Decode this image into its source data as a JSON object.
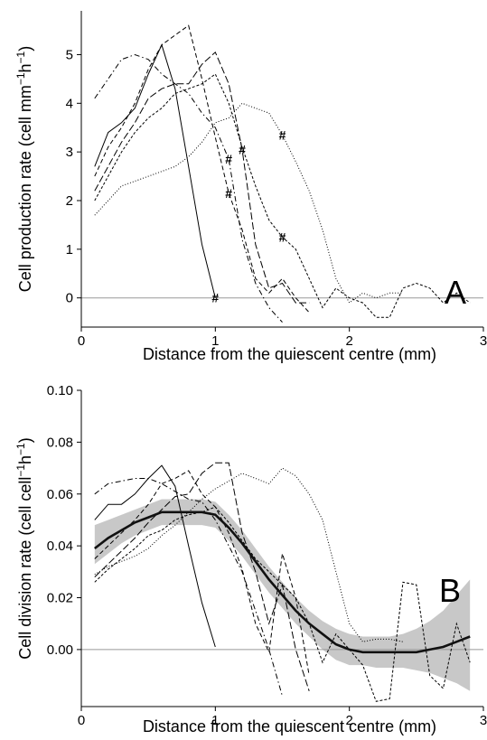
{
  "chart_data": [
    {
      "panel_label": "A",
      "type": "line",
      "xlabel": "Distance from the quiescent centre (mm)",
      "ylabel_main": "Cell production rate (cell mm",
      "ylabel_sup1": "−1",
      "ylabel_mid": "h",
      "ylabel_sup2": "−1",
      "ylabel_end": ")",
      "xlim": [
        0,
        3
      ],
      "ylim": [
        -0.6,
        5.9
      ],
      "xticks": [
        "0",
        "1",
        "2",
        "3"
      ],
      "yticks": [
        "0",
        "1",
        "2",
        "3",
        "4",
        "5"
      ],
      "reference_line_y": 0,
      "marker_symbol": "#",
      "markers": [
        {
          "x": 1.0,
          "y": 0.0
        },
        {
          "x": 1.1,
          "y": 2.85
        },
        {
          "x": 1.1,
          "y": 2.15
        },
        {
          "x": 1.2,
          "y": 3.05
        },
        {
          "x": 1.5,
          "y": 3.35
        },
        {
          "x": 1.5,
          "y": 1.25
        }
      ],
      "series": [
        {
          "style": "solid",
          "x": [
            0.1,
            0.2,
            0.3,
            0.4,
            0.5,
            0.6,
            0.7,
            0.8,
            0.9,
            1.0
          ],
          "y": [
            2.7,
            3.4,
            3.6,
            3.9,
            4.6,
            5.2,
            4.3,
            2.7,
            1.1,
            0.0
          ]
        },
        {
          "style": "dashdot",
          "x": [
            0.1,
            0.2,
            0.3,
            0.4,
            0.5,
            0.6,
            0.7,
            0.8,
            0.9,
            1.0,
            1.1,
            1.2,
            1.3,
            1.4,
            1.5
          ],
          "y": [
            4.1,
            4.5,
            4.9,
            5.0,
            4.9,
            4.6,
            4.4,
            4.2,
            3.8,
            3.5,
            2.85,
            1.2,
            0.3,
            -0.2,
            -0.5
          ]
        },
        {
          "style": "dashed",
          "x": [
            0.1,
            0.2,
            0.3,
            0.4,
            0.5,
            0.6,
            0.7,
            0.8,
            0.9,
            1.0,
            1.1,
            1.2,
            1.3,
            1.4,
            1.5,
            1.6,
            1.7
          ],
          "y": [
            2.5,
            3.1,
            3.5,
            4.0,
            4.7,
            5.2,
            5.4,
            5.6,
            4.5,
            3.3,
            2.15,
            1.4,
            0.4,
            0.1,
            0.4,
            0.0,
            -0.3
          ]
        },
        {
          "style": "longdash",
          "x": [
            0.1,
            0.2,
            0.3,
            0.4,
            0.5,
            0.6,
            0.7,
            0.8,
            0.9,
            1.0,
            1.1,
            1.2,
            1.3,
            1.4,
            1.5,
            1.6,
            1.7
          ],
          "y": [
            2.2,
            2.7,
            3.2,
            3.6,
            4.1,
            4.3,
            4.4,
            4.4,
            4.8,
            5.05,
            4.4,
            3.05,
            1.1,
            0.2,
            0.3,
            -0.1,
            -0.1
          ]
        },
        {
          "style": "shortdash",
          "x": [
            0.1,
            0.2,
            0.3,
            0.4,
            0.5,
            0.6,
            0.7,
            0.8,
            0.9,
            1.0,
            1.1,
            1.2,
            1.3,
            1.4,
            1.5,
            1.6,
            1.7,
            1.8,
            1.9,
            2.0,
            2.1,
            2.2,
            2.3,
            2.4,
            2.5,
            2.6,
            2.7,
            2.8,
            2.9
          ],
          "y": [
            2.0,
            2.5,
            3.0,
            3.4,
            3.7,
            3.9,
            4.2,
            4.3,
            4.4,
            4.6,
            4.0,
            3.1,
            2.3,
            1.6,
            1.25,
            1.0,
            0.4,
            -0.2,
            0.2,
            0.0,
            -0.1,
            -0.4,
            -0.4,
            0.2,
            0.3,
            0.2,
            -0.1,
            0.1,
            -0.1
          ]
        },
        {
          "style": "dotted",
          "x": [
            0.1,
            0.2,
            0.3,
            0.4,
            0.5,
            0.6,
            0.7,
            0.8,
            0.9,
            1.0,
            1.1,
            1.2,
            1.3,
            1.4,
            1.5,
            1.6,
            1.7,
            1.8,
            1.9,
            2.0,
            2.1,
            2.2,
            2.3,
            2.4
          ],
          "y": [
            1.7,
            2.0,
            2.3,
            2.4,
            2.5,
            2.6,
            2.7,
            2.9,
            3.2,
            3.6,
            3.7,
            4.0,
            3.9,
            3.8,
            3.35,
            2.8,
            2.2,
            1.4,
            0.4,
            -0.1,
            0.1,
            0.0,
            0.1,
            0.1
          ]
        }
      ]
    },
    {
      "panel_label": "B",
      "type": "line",
      "xlabel": "Distance from the quiescent centre (mm)",
      "ylabel_main": "Cell division rate (cell cell",
      "ylabel_sup1": "−1",
      "ylabel_mid": "h",
      "ylabel_sup2": "−1",
      "ylabel_end": ")",
      "xlim": [
        0,
        3
      ],
      "ylim": [
        -0.022,
        0.1
      ],
      "xticks": [
        "0",
        "1",
        "2",
        "3"
      ],
      "yticks": [
        "0.00",
        "0.02",
        "0.04",
        "0.06",
        "0.08",
        "0.10"
      ],
      "reference_line_y": 0,
      "smooth": {
        "x": [
          0.1,
          0.2,
          0.3,
          0.4,
          0.5,
          0.6,
          0.7,
          0.8,
          0.9,
          1.0,
          1.1,
          1.2,
          1.3,
          1.4,
          1.5,
          1.6,
          1.7,
          1.8,
          1.9,
          2.0,
          2.1,
          2.2,
          2.3,
          2.4,
          2.5,
          2.6,
          2.7,
          2.8,
          2.9
        ],
        "y": [
          0.039,
          0.043,
          0.046,
          0.049,
          0.051,
          0.053,
          0.053,
          0.053,
          0.053,
          0.052,
          0.047,
          0.041,
          0.034,
          0.027,
          0.021,
          0.015,
          0.01,
          0.006,
          0.002,
          0.0,
          -0.001,
          -0.001,
          -0.001,
          -0.001,
          -0.001,
          0.0,
          0.001,
          0.003,
          0.005
        ],
        "lower": [
          0.033,
          0.037,
          0.041,
          0.044,
          0.046,
          0.048,
          0.048,
          0.048,
          0.048,
          0.047,
          0.042,
          0.036,
          0.029,
          0.022,
          0.016,
          0.01,
          0.005,
          0.0,
          -0.004,
          -0.006,
          -0.006,
          -0.007,
          -0.007,
          -0.007,
          -0.008,
          -0.009,
          -0.011,
          -0.013,
          -0.016
        ],
        "upper": [
          0.048,
          0.05,
          0.052,
          0.054,
          0.056,
          0.058,
          0.058,
          0.058,
          0.058,
          0.057,
          0.052,
          0.046,
          0.039,
          0.032,
          0.026,
          0.02,
          0.015,
          0.011,
          0.008,
          0.006,
          0.005,
          0.005,
          0.005,
          0.006,
          0.008,
          0.011,
          0.015,
          0.021,
          0.027
        ]
      },
      "series": [
        {
          "style": "solid",
          "x": [
            0.1,
            0.2,
            0.3,
            0.4,
            0.5,
            0.6,
            0.7,
            0.8,
            0.9,
            1.0
          ],
          "y": [
            0.05,
            0.056,
            0.056,
            0.06,
            0.066,
            0.071,
            0.063,
            0.04,
            0.018,
            0.001
          ]
        },
        {
          "style": "dashdot",
          "x": [
            0.1,
            0.2,
            0.3,
            0.4,
            0.5,
            0.6,
            0.7,
            0.8,
            0.9,
            1.0,
            1.1,
            1.2,
            1.3,
            1.4,
            1.5
          ],
          "y": [
            0.06,
            0.064,
            0.065,
            0.066,
            0.066,
            0.064,
            0.061,
            0.058,
            0.057,
            0.05,
            0.04,
            0.03,
            0.015,
            0.0,
            -0.018
          ]
        },
        {
          "style": "dashed",
          "x": [
            0.1,
            0.2,
            0.3,
            0.4,
            0.5,
            0.6,
            0.7,
            0.8,
            0.9,
            1.0,
            1.1,
            1.2,
            1.3,
            1.4,
            1.5,
            1.6,
            1.7
          ],
          "y": [
            0.035,
            0.04,
            0.045,
            0.05,
            0.056,
            0.064,
            0.066,
            0.069,
            0.06,
            0.055,
            0.045,
            0.031,
            0.01,
            -0.001,
            0.037,
            0.02,
            -0.01
          ]
        },
        {
          "style": "longdash",
          "x": [
            0.1,
            0.2,
            0.3,
            0.4,
            0.5,
            0.6,
            0.7,
            0.8,
            0.9,
            1.0,
            1.1,
            1.2,
            1.3,
            1.4,
            1.5,
            1.6,
            1.7
          ],
          "y": [
            0.028,
            0.033,
            0.038,
            0.043,
            0.049,
            0.054,
            0.059,
            0.06,
            0.068,
            0.072,
            0.072,
            0.045,
            0.03,
            0.01,
            0.025,
            0.0,
            -0.016
          ]
        },
        {
          "style": "shortdash",
          "x": [
            0.1,
            0.2,
            0.3,
            0.4,
            0.5,
            0.6,
            0.7,
            0.8,
            0.9,
            1.0,
            1.1,
            1.2,
            1.3,
            1.4,
            1.5,
            1.6,
            1.7,
            1.8,
            1.9,
            2.0,
            2.1,
            2.2,
            2.3,
            2.4,
            2.5,
            2.6,
            2.7,
            2.8,
            2.9
          ],
          "y": [
            0.026,
            0.031,
            0.035,
            0.039,
            0.044,
            0.046,
            0.05,
            0.052,
            0.053,
            0.055,
            0.049,
            0.042,
            0.035,
            0.03,
            0.025,
            0.02,
            0.01,
            -0.005,
            0.006,
            0.0,
            -0.006,
            -0.02,
            -0.019,
            0.026,
            0.025,
            -0.01,
            -0.015,
            0.01,
            -0.005
          ]
        },
        {
          "style": "dotted",
          "x": [
            0.1,
            0.2,
            0.3,
            0.4,
            0.5,
            0.6,
            0.7,
            0.8,
            0.9,
            1.0,
            1.1,
            1.2,
            1.3,
            1.4,
            1.5,
            1.6,
            1.7,
            1.8,
            1.9,
            2.0,
            2.1,
            2.2,
            2.3,
            2.4
          ],
          "y": [
            0.029,
            0.032,
            0.034,
            0.036,
            0.039,
            0.044,
            0.048,
            0.053,
            0.058,
            0.062,
            0.065,
            0.068,
            0.066,
            0.064,
            0.07,
            0.067,
            0.06,
            0.05,
            0.03,
            0.01,
            0.003,
            0.004,
            0.004,
            0.003
          ]
        }
      ]
    }
  ]
}
